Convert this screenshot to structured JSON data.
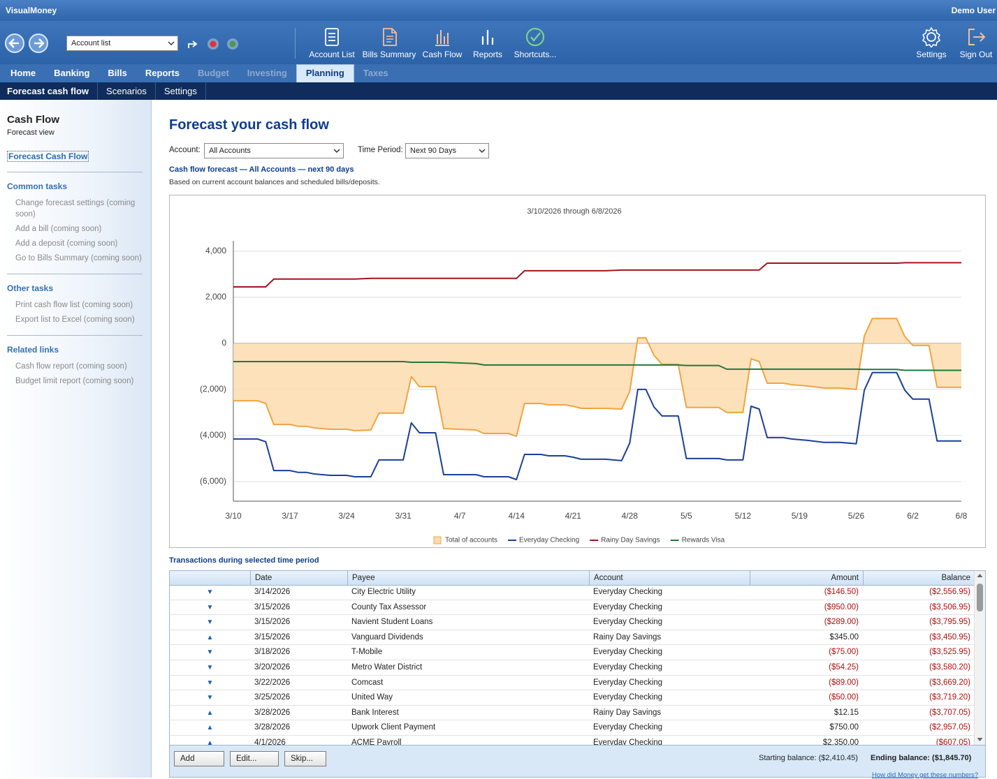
{
  "app": {
    "title": "VisualMoney",
    "user": "Demo User"
  },
  "toolbar": {
    "account_select": "Account list",
    "buttons": [
      "Account List",
      "Bills Summary",
      "Cash Flow",
      "Reports",
      "Shortcuts..."
    ],
    "right_buttons": [
      "Settings",
      "Sign Out"
    ]
  },
  "tabs": [
    {
      "label": "Home"
    },
    {
      "label": "Banking"
    },
    {
      "label": "Bills"
    },
    {
      "label": "Reports"
    },
    {
      "label": "Budget",
      "disabled": true
    },
    {
      "label": "Investing",
      "disabled": true
    },
    {
      "label": "Planning",
      "active": true
    },
    {
      "label": "Taxes",
      "disabled": true
    }
  ],
  "subnav": [
    {
      "label": "Forecast cash flow",
      "active": true
    },
    {
      "label": "Scenarios"
    },
    {
      "label": "Settings"
    }
  ],
  "sidebar": {
    "title": "Cash Flow",
    "subtitle": "Forecast view",
    "main_link": "Forecast Cash Flow",
    "sections": [
      {
        "title": "Common tasks",
        "items": [
          "Change forecast settings (coming soon)",
          "Add a bill (coming soon)",
          "Add a deposit (coming soon)",
          "Go to Bills Summary (coming soon)"
        ]
      },
      {
        "title": "Other tasks",
        "items": [
          "Print cash flow list (coming soon)",
          "Export list to Excel (coming soon)"
        ]
      },
      {
        "title": "Related links",
        "items": [
          "Cash flow report (coming soon)",
          "Budget limit report (coming soon)"
        ]
      }
    ]
  },
  "page": {
    "title": "Forecast your cash flow",
    "account_label": "Account:",
    "account_value": "All Accounts",
    "period_label": "Time Period:",
    "period_value": "Next 90 Days",
    "subtitle": "Cash flow forecast — All Accounts — next 90 days",
    "note": "Based on current account balances and scheduled bills/deposits."
  },
  "chart_data": {
    "type": "line",
    "title": "3/10/2026 through 6/8/2026",
    "x": [
      "3/10",
      "3/13",
      "3/14",
      "3/15",
      "3/17",
      "3/18",
      "3/19",
      "3/20",
      "3/22",
      "3/24",
      "3/25",
      "3/27",
      "3/28",
      "3/31",
      "4/1",
      "4/2",
      "4/4",
      "4/5",
      "4/9",
      "4/10",
      "4/13",
      "4/14",
      "4/15",
      "4/17",
      "4/18",
      "4/20",
      "4/21",
      "4/22",
      "4/25",
      "4/27",
      "4/28",
      "4/29",
      "4/30",
      "5/1",
      "5/2",
      "5/4",
      "5/5",
      "5/9",
      "5/10",
      "5/12",
      "5/13",
      "5/14",
      "5/15",
      "5/17",
      "5/18",
      "5/20",
      "5/22",
      "5/24",
      "5/26",
      "5/27",
      "5/28",
      "5/31",
      "6/1",
      "6/2",
      "6/4",
      "6/5",
      "6/8"
    ],
    "xlim": [
      "3/10",
      "6/8"
    ],
    "xticks": [
      "3/10",
      "3/17",
      "3/24",
      "3/31",
      "4/7",
      "4/14",
      "4/21",
      "4/28",
      "5/5",
      "5/12",
      "5/19",
      "5/26",
      "6/2",
      "6/8"
    ],
    "ylim": [
      -6850,
      4450
    ],
    "yticks": [
      {
        "value": 4000,
        "label": "4,000"
      },
      {
        "value": 2000,
        "label": "2,000"
      },
      0,
      {
        "value": -2000,
        "label": "(2,000)"
      },
      {
        "value": -4000,
        "label": "(4,000)"
      },
      {
        "value": -6000,
        "label": "(6,000)"
      }
    ],
    "grid": true,
    "legend": "bottom",
    "series": [
      {
        "name": "Total of accounts",
        "style": "area",
        "color": "#f0a440",
        "fill": "#fbdcae",
        "values": [
          -2490,
          -2490,
          -2610,
          -3520,
          -3520,
          -3600,
          -3600,
          -3670,
          -3730,
          -3730,
          -3790,
          -3760,
          -3030,
          -3030,
          -1450,
          -1880,
          -1880,
          -3700,
          -3760,
          -3910,
          -3910,
          -4030,
          -2610,
          -2610,
          -2670,
          -2670,
          -2730,
          -2820,
          -2820,
          -2850,
          -2090,
          240,
          240,
          -520,
          -910,
          -910,
          -2780,
          -2780,
          -3000,
          -3000,
          -670,
          -790,
          -1730,
          -1730,
          -1790,
          -1850,
          -1940,
          -1940,
          -2000,
          320,
          1080,
          1080,
          300,
          -90,
          -90,
          -1910,
          -1910
        ]
      },
      {
        "name": "Everyday Checking",
        "color": "#1a3f9a",
        "values": [
          -4150,
          -4150,
          -4270,
          -5520,
          -5520,
          -5600,
          -5600,
          -5670,
          -5730,
          -5730,
          -5790,
          -5790,
          -5060,
          -5060,
          -3450,
          -3880,
          -3880,
          -5700,
          -5700,
          -5790,
          -5790,
          -5910,
          -4820,
          -4820,
          -4880,
          -4880,
          -4940,
          -5030,
          -5030,
          -5090,
          -4330,
          -2000,
          -2000,
          -2760,
          -3150,
          -3150,
          -5000,
          -5000,
          -5060,
          -5060,
          -2730,
          -2850,
          -4090,
          -4090,
          -4150,
          -4210,
          -4300,
          -4300,
          -4360,
          -2030,
          -1270,
          -1270,
          -2030,
          -2420,
          -2420,
          -4240,
          -4240
        ]
      },
      {
        "name": "Rainy Day Savings",
        "color": "#a3141b",
        "values": [
          2450,
          2450,
          2450,
          2790,
          2790,
          2790,
          2790,
          2790,
          2790,
          2790,
          2790,
          2820,
          2820,
          2820,
          2820,
          2820,
          2820,
          2820,
          2820,
          2820,
          2820,
          2820,
          3150,
          3150,
          3150,
          3150,
          3150,
          3150,
          3150,
          3180,
          3180,
          3180,
          3180,
          3180,
          3180,
          3180,
          3180,
          3180,
          3180,
          3180,
          3180,
          3180,
          3480,
          3480,
          3480,
          3480,
          3480,
          3480,
          3480,
          3480,
          3480,
          3480,
          3500,
          3500,
          3500,
          3500,
          3500
        ]
      },
      {
        "name": "Rewards Visa",
        "color": "#1e7a3c",
        "values": [
          -790,
          -790,
          -790,
          -790,
          -790,
          -790,
          -790,
          -790,
          -790,
          -790,
          -790,
          -790,
          -790,
          -790,
          -820,
          -820,
          -820,
          -820,
          -880,
          -940,
          -940,
          -940,
          -940,
          -940,
          -940,
          -940,
          -940,
          -940,
          -940,
          -940,
          -940,
          -940,
          -940,
          -940,
          -940,
          -940,
          -960,
          -960,
          -1120,
          -1120,
          -1120,
          -1120,
          -1120,
          -1120,
          -1120,
          -1120,
          -1120,
          -1120,
          -1120,
          -1130,
          -1130,
          -1130,
          -1170,
          -1170,
          -1170,
          -1170,
          -1170
        ]
      }
    ]
  },
  "table": {
    "title": "Transactions during selected time period",
    "columns": [
      "Date",
      "Payee",
      "Account",
      "Amount",
      "Balance"
    ],
    "rows": [
      [
        "▼",
        "3/14/2026",
        "City Electric Utility",
        "Everyday Checking",
        "($146.50)",
        "($2,556.95)"
      ],
      [
        "▼",
        "3/15/2026",
        "County Tax Assessor",
        "Everyday Checking",
        "($950.00)",
        "($3,506.95)"
      ],
      [
        "▼",
        "3/15/2026",
        "Navient Student Loans",
        "Everyday Checking",
        "($289.00)",
        "($3,795.95)"
      ],
      [
        "▲",
        "3/15/2026",
        "Vanguard Dividends",
        "Rainy Day Savings",
        "$345.00",
        "($3,450.95)"
      ],
      [
        "▼",
        "3/18/2026",
        "T-Mobile",
        "Everyday Checking",
        "($75.00)",
        "($3,525.95)"
      ],
      [
        "▼",
        "3/20/2026",
        "Metro Water District",
        "Everyday Checking",
        "($54.25)",
        "($3,580.20)"
      ],
      [
        "▼",
        "3/22/2026",
        "Comcast",
        "Everyday Checking",
        "($89.00)",
        "($3,669.20)"
      ],
      [
        "▼",
        "3/25/2026",
        "United Way",
        "Everyday Checking",
        "($50.00)",
        "($3,719.20)"
      ],
      [
        "▲",
        "3/28/2026",
        "Bank Interest",
        "Rainy Day Savings",
        "$12.15",
        "($3,707.05)"
      ],
      [
        "▲",
        "3/28/2026",
        "Upwork Client Payment",
        "Everyday Checking",
        "$750.00",
        "($2,957.05)"
      ],
      [
        "▲",
        "4/1/2026",
        "ACME Payroll",
        "Everyday Checking",
        "$2,350.00",
        "($607.05)"
      ]
    ]
  },
  "footer": {
    "buttons": [
      "Add",
      "Edit...",
      "Skip..."
    ],
    "starting_label": "Starting balance:",
    "starting_value": "($2,410.45)",
    "ending_label": "Ending balance:",
    "ending_value": "($1,845.70)",
    "help_link": "How did Money get these numbers?"
  }
}
